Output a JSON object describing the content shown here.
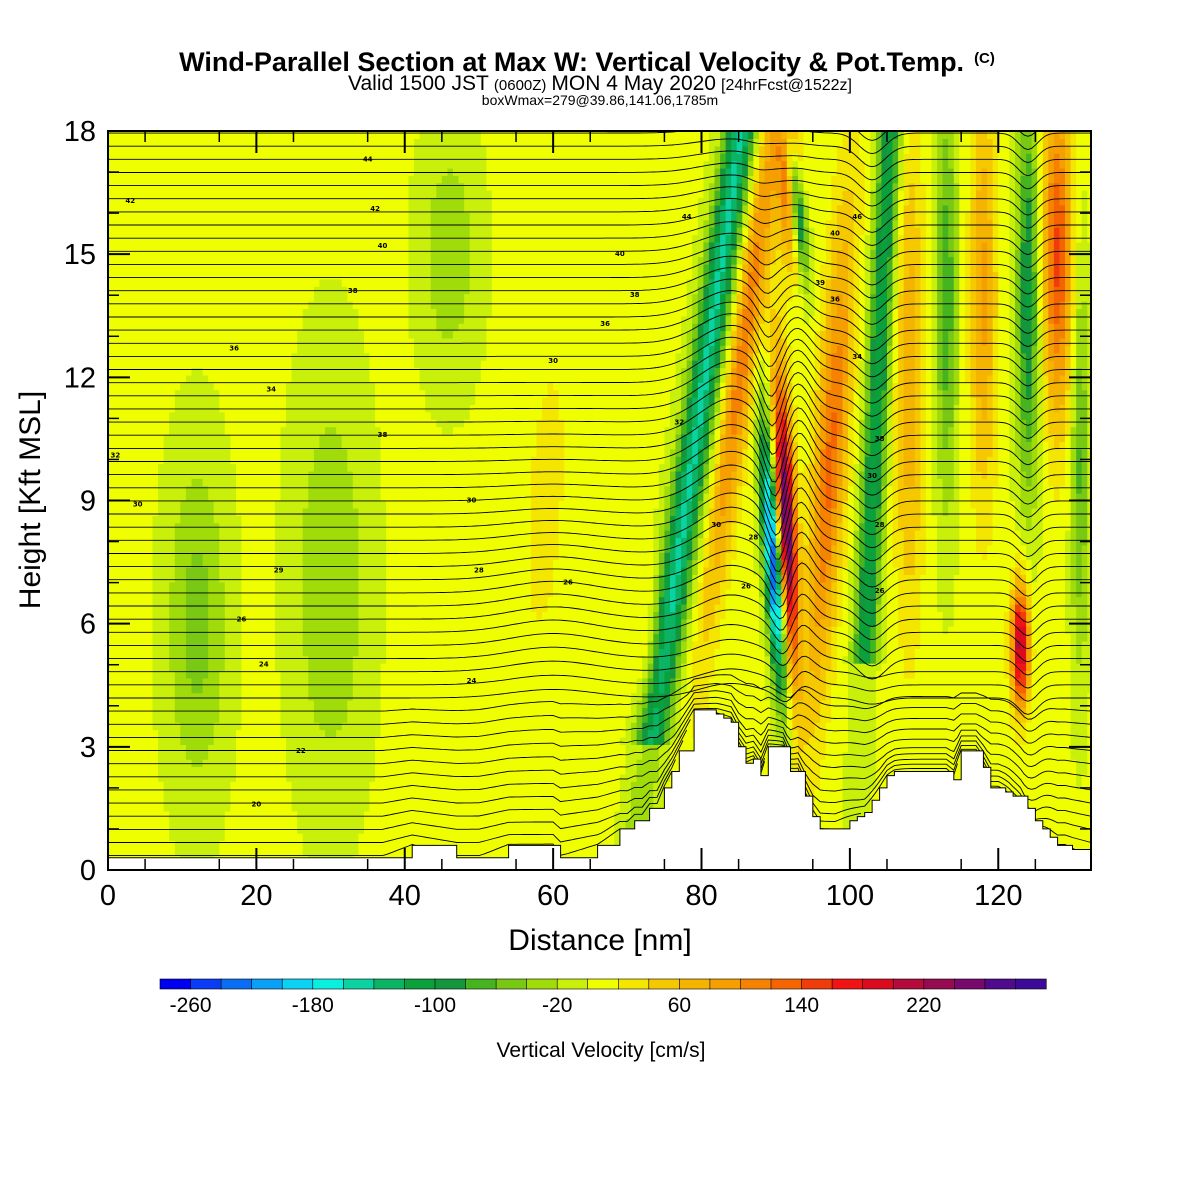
{
  "chart_data": {
    "type": "heatmap",
    "title": "Wind-Parallel Section at Max W: Vertical Velocity & Pot.Temp.",
    "title_mark": "(C)",
    "subtitle": "Valid 1500 JST",
    "subtitle_utc": "(0600Z)",
    "subtitle_date": "MON 4 May 2020",
    "subtitle_fcst": "[24hrFcst@1522z]",
    "subtitle2": "boxWmax=279@39.86,141.06,1785m",
    "xlabel": "Distance [nm]",
    "ylabel": "Height [Kft MSL]",
    "xlim": [
      0,
      132.5
    ],
    "ylim": [
      0,
      18
    ],
    "xticks": [
      0,
      20,
      40,
      60,
      80,
      100,
      120
    ],
    "yticks": [
      0,
      3,
      6,
      9,
      12,
      15,
      18
    ],
    "colorbar": {
      "label": "Vertical Velocity [cm/s]",
      "min": -280,
      "max": 300,
      "step": 20,
      "tick_values": [
        -260,
        -180,
        -100,
        -20,
        60,
        140,
        220
      ],
      "colors": [
        "#0000f0",
        "#0a3cf5",
        "#0a6ef5",
        "#0aa0f5",
        "#0ad2f5",
        "#0af0e0",
        "#0ad2a0",
        "#0ab464",
        "#0aa03c",
        "#14963c",
        "#46b41e",
        "#78c814",
        "#a0dc0a",
        "#c8f00a",
        "#f0ff00",
        "#f5e600",
        "#f5c800",
        "#f5b400",
        "#f5a000",
        "#f58200",
        "#f56400",
        "#f03c0a",
        "#f01414",
        "#dc0a1e",
        "#b40a3c",
        "#960a50",
        "#780a6e",
        "#500a8c",
        "#3c0a96"
      ]
    },
    "terrain_kft": {
      "x": [
        0,
        1,
        37,
        41,
        47,
        50,
        54,
        60,
        61,
        66,
        69,
        70,
        71,
        72,
        73,
        74,
        75,
        76,
        77,
        79,
        82,
        83,
        84,
        85,
        86,
        87,
        88,
        89,
        90,
        91,
        92,
        93,
        94,
        95,
        96,
        97,
        98,
        100,
        101,
        102,
        103,
        104,
        105,
        106,
        107,
        108,
        109,
        110,
        112,
        113,
        114,
        115,
        117,
        118,
        119,
        120,
        121,
        122,
        123,
        124,
        125,
        126,
        127,
        128,
        129,
        130,
        132.5
      ],
      "y": [
        0.3,
        0.3,
        0.3,
        0.6,
        0.3,
        0.3,
        0.6,
        0.6,
        0.3,
        0.6,
        1.0,
        1.0,
        1.2,
        1.2,
        1.5,
        1.5,
        2.0,
        2.4,
        2.9,
        3.9,
        3.8,
        3.7,
        3.6,
        3.0,
        2.6,
        2.7,
        2.3,
        3.0,
        3.0,
        3.0,
        2.4,
        2.4,
        1.8,
        1.3,
        1.0,
        1.0,
        1.0,
        1.2,
        1.3,
        1.4,
        1.7,
        2.0,
        2.3,
        2.4,
        2.4,
        2.4,
        2.4,
        2.4,
        2.4,
        2.4,
        2.2,
        2.9,
        2.9,
        2.5,
        2.0,
        2.0,
        1.9,
        1.8,
        1.8,
        1.5,
        1.2,
        1.0,
        0.8,
        0.6,
        0.6,
        0.5,
        0.3
      ]
    },
    "contour_labels": [
      {
        "x": 35,
        "y": 17.3,
        "text": "44"
      },
      {
        "x": 3,
        "y": 16.3,
        "text": "42"
      },
      {
        "x": 36,
        "y": 16.1,
        "text": "42"
      },
      {
        "x": 37,
        "y": 15.2,
        "text": "40"
      },
      {
        "x": 69,
        "y": 15.0,
        "text": "40"
      },
      {
        "x": 33,
        "y": 14.1,
        "text": "38"
      },
      {
        "x": 71,
        "y": 14.0,
        "text": "38"
      },
      {
        "x": 67,
        "y": 13.3,
        "text": "36"
      },
      {
        "x": 17,
        "y": 12.7,
        "text": "36"
      },
      {
        "x": 60,
        "y": 12.4,
        "text": "30"
      },
      {
        "x": 22,
        "y": 11.7,
        "text": "34"
      },
      {
        "x": 37,
        "y": 10.6,
        "text": "38"
      },
      {
        "x": 1,
        "y": 10.1,
        "text": "32"
      },
      {
        "x": 49,
        "y": 9.0,
        "text": "30"
      },
      {
        "x": 4,
        "y": 8.9,
        "text": "30"
      },
      {
        "x": 23,
        "y": 7.3,
        "text": "29"
      },
      {
        "x": 50,
        "y": 7.3,
        "text": "28"
      },
      {
        "x": 62,
        "y": 7.0,
        "text": "26"
      },
      {
        "x": 18,
        "y": 6.1,
        "text": "26"
      },
      {
        "x": 21,
        "y": 5.0,
        "text": "24"
      },
      {
        "x": 49,
        "y": 4.6,
        "text": "24"
      },
      {
        "x": 26,
        "y": 2.9,
        "text": "22"
      },
      {
        "x": 20,
        "y": 1.6,
        "text": "20"
      },
      {
        "x": 78,
        "y": 15.9,
        "text": "44"
      },
      {
        "x": 77,
        "y": 10.9,
        "text": "32"
      },
      {
        "x": 82,
        "y": 8.4,
        "text": "30"
      },
      {
        "x": 87,
        "y": 8.1,
        "text": "28"
      },
      {
        "x": 86,
        "y": 6.9,
        "text": "26"
      },
      {
        "x": 98,
        "y": 15.5,
        "text": "40"
      },
      {
        "x": 101,
        "y": 15.9,
        "text": "46"
      },
      {
        "x": 96,
        "y": 14.3,
        "text": "39"
      },
      {
        "x": 98,
        "y": 13.9,
        "text": "36"
      },
      {
        "x": 101,
        "y": 12.5,
        "text": "34"
      },
      {
        "x": 104,
        "y": 10.5,
        "text": "38"
      },
      {
        "x": 103,
        "y": 9.6,
        "text": "30"
      },
      {
        "x": 104,
        "y": 8.4,
        "text": "28"
      },
      {
        "x": 104,
        "y": 6.8,
        "text": "26"
      }
    ]
  }
}
